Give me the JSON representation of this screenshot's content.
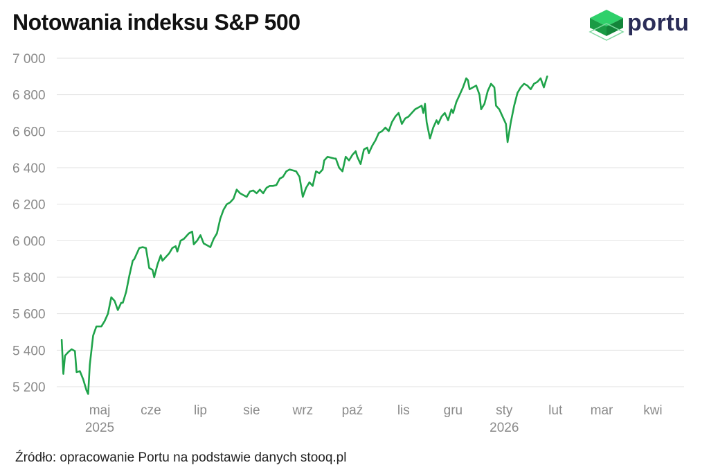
{
  "title": "Notowania indeksu S&P 500",
  "logo": {
    "text": "portu",
    "icon": "cube-icon",
    "color": "#1faa4a"
  },
  "source": "Źródło: opracowanie Portu na podstawie danych stooq.pl",
  "chart_data": {
    "type": "line",
    "title": "Notowania indeksu S&P 500",
    "xlabel": "",
    "ylabel": "",
    "ylim": [
      5150,
      7000
    ],
    "yticks": [
      5200,
      5400,
      5600,
      5800,
      6000,
      6200,
      6400,
      6600,
      6800,
      7000
    ],
    "ytick_labels": [
      "5 200",
      "5 400",
      "5 600",
      "5 800",
      "6 000",
      "6 200",
      "6 400",
      "6 600",
      "6 800",
      "7 000"
    ],
    "x_tick_labels": [
      {
        "label": "maj",
        "year": "2025",
        "date": "2025-05-01"
      },
      {
        "label": "cze",
        "year": "",
        "date": "2025-06-01"
      },
      {
        "label": "lip",
        "year": "",
        "date": "2025-07-01"
      },
      {
        "label": "sie",
        "year": "",
        "date": "2025-08-01"
      },
      {
        "label": "wrz",
        "year": "",
        "date": "2025-09-01"
      },
      {
        "label": "paź",
        "year": "",
        "date": "2025-10-01"
      },
      {
        "label": "lis",
        "year": "",
        "date": "2025-11-01"
      },
      {
        "label": "gru",
        "year": "",
        "date": "2025-12-01"
      },
      {
        "label": "sty",
        "year": "2026",
        "date": "2026-01-01"
      },
      {
        "label": "lut",
        "year": "",
        "date": "2026-02-01"
      },
      {
        "label": "mar",
        "year": "",
        "date": "2026-03-01"
      },
      {
        "label": "kwi",
        "year": "",
        "date": "2026-04-01"
      }
    ],
    "grid": true,
    "line_color": "#1fa34a",
    "series": [
      {
        "name": "",
        "points": [
          [
            "2025-04-08",
            5457
          ],
          [
            "2025-04-09",
            5270
          ],
          [
            "2025-04-10",
            5370
          ],
          [
            "2025-04-12",
            5390
          ],
          [
            "2025-04-14",
            5405
          ],
          [
            "2025-04-16",
            5395
          ],
          [
            "2025-04-17",
            5280
          ],
          [
            "2025-04-19",
            5285
          ],
          [
            "2025-04-21",
            5240
          ],
          [
            "2025-04-23",
            5180
          ],
          [
            "2025-04-24",
            5160
          ],
          [
            "2025-04-25",
            5320
          ],
          [
            "2025-04-27",
            5480
          ],
          [
            "2025-04-29",
            5530
          ],
          [
            "2025-05-02",
            5530
          ],
          [
            "2025-05-04",
            5560
          ],
          [
            "2025-05-06",
            5600
          ],
          [
            "2025-05-08",
            5690
          ],
          [
            "2025-05-10",
            5670
          ],
          [
            "2025-05-12",
            5620
          ],
          [
            "2025-05-14",
            5660
          ],
          [
            "2025-05-15",
            5660
          ],
          [
            "2025-05-17",
            5720
          ],
          [
            "2025-05-19",
            5810
          ],
          [
            "2025-05-21",
            5890
          ],
          [
            "2025-05-22",
            5900
          ],
          [
            "2025-05-25",
            5960
          ],
          [
            "2025-05-27",
            5965
          ],
          [
            "2025-05-29",
            5960
          ],
          [
            "2025-05-31",
            5850
          ],
          [
            "2025-06-02",
            5840
          ],
          [
            "2025-06-03",
            5800
          ],
          [
            "2025-06-05",
            5870
          ],
          [
            "2025-06-07",
            5920
          ],
          [
            "2025-06-08",
            5890
          ],
          [
            "2025-06-10",
            5910
          ],
          [
            "2025-06-12",
            5930
          ],
          [
            "2025-06-14",
            5960
          ],
          [
            "2025-06-16",
            5970
          ],
          [
            "2025-06-17",
            5940
          ],
          [
            "2025-06-19",
            6000
          ],
          [
            "2025-06-21",
            6010
          ],
          [
            "2025-06-23",
            6030
          ],
          [
            "2025-06-24",
            6040
          ],
          [
            "2025-06-26",
            6050
          ],
          [
            "2025-06-27",
            5980
          ],
          [
            "2025-06-29",
            6000
          ],
          [
            "2025-07-01",
            6030
          ],
          [
            "2025-07-03",
            5985
          ],
          [
            "2025-07-05",
            5975
          ],
          [
            "2025-07-07",
            5965
          ],
          [
            "2025-07-09",
            6010
          ],
          [
            "2025-07-11",
            6040
          ],
          [
            "2025-07-13",
            6120
          ],
          [
            "2025-07-15",
            6170
          ],
          [
            "2025-07-17",
            6200
          ],
          [
            "2025-07-19",
            6210
          ],
          [
            "2025-07-21",
            6230
          ],
          [
            "2025-07-23",
            6280
          ],
          [
            "2025-07-25",
            6260
          ],
          [
            "2025-07-27",
            6250
          ],
          [
            "2025-07-29",
            6240
          ],
          [
            "2025-07-31",
            6270
          ],
          [
            "2025-08-02",
            6275
          ],
          [
            "2025-08-04",
            6260
          ],
          [
            "2025-08-06",
            6280
          ],
          [
            "2025-08-08",
            6260
          ],
          [
            "2025-08-10",
            6290
          ],
          [
            "2025-08-12",
            6300
          ],
          [
            "2025-08-14",
            6300
          ],
          [
            "2025-08-16",
            6305
          ],
          [
            "2025-08-18",
            6340
          ],
          [
            "2025-08-20",
            6350
          ],
          [
            "2025-08-22",
            6380
          ],
          [
            "2025-08-24",
            6390
          ],
          [
            "2025-08-26",
            6385
          ],
          [
            "2025-08-28",
            6380
          ],
          [
            "2025-08-30",
            6350
          ],
          [
            "2025-09-01",
            6240
          ],
          [
            "2025-09-03",
            6290
          ],
          [
            "2025-09-05",
            6320
          ],
          [
            "2025-09-07",
            6300
          ],
          [
            "2025-09-09",
            6380
          ],
          [
            "2025-09-11",
            6370
          ],
          [
            "2025-09-13",
            6390
          ],
          [
            "2025-09-14",
            6440
          ],
          [
            "2025-09-16",
            6460
          ],
          [
            "2025-09-18",
            6455
          ],
          [
            "2025-09-20",
            6450
          ],
          [
            "2025-09-21",
            6450
          ],
          [
            "2025-09-23",
            6400
          ],
          [
            "2025-09-25",
            6380
          ],
          [
            "2025-09-27",
            6460
          ],
          [
            "2025-09-29",
            6440
          ],
          [
            "2025-10-01",
            6470
          ],
          [
            "2025-10-03",
            6490
          ],
          [
            "2025-10-04",
            6460
          ],
          [
            "2025-10-06",
            6420
          ],
          [
            "2025-10-08",
            6500
          ],
          [
            "2025-10-10",
            6510
          ],
          [
            "2025-10-11",
            6480
          ],
          [
            "2025-10-13",
            6520
          ],
          [
            "2025-10-15",
            6550
          ],
          [
            "2025-10-17",
            6590
          ],
          [
            "2025-10-19",
            6600
          ],
          [
            "2025-10-21",
            6620
          ],
          [
            "2025-10-23",
            6600
          ],
          [
            "2025-10-25",
            6650
          ],
          [
            "2025-10-27",
            6680
          ],
          [
            "2025-10-29",
            6700
          ],
          [
            "2025-10-31",
            6640
          ],
          [
            "2025-11-02",
            6670
          ],
          [
            "2025-11-04",
            6680
          ],
          [
            "2025-11-06",
            6700
          ],
          [
            "2025-11-08",
            6720
          ],
          [
            "2025-11-10",
            6730
          ],
          [
            "2025-11-12",
            6740
          ],
          [
            "2025-11-13",
            6700
          ],
          [
            "2025-11-14",
            6750
          ],
          [
            "2025-11-15",
            6650
          ],
          [
            "2025-11-17",
            6560
          ],
          [
            "2025-11-19",
            6620
          ],
          [
            "2025-11-21",
            6660
          ],
          [
            "2025-11-22",
            6640
          ],
          [
            "2025-11-24",
            6680
          ],
          [
            "2025-11-26",
            6700
          ],
          [
            "2025-11-28",
            6660
          ],
          [
            "2025-11-30",
            6720
          ],
          [
            "2025-12-01",
            6700
          ],
          [
            "2025-12-03",
            6760
          ],
          [
            "2025-12-05",
            6800
          ],
          [
            "2025-12-07",
            6840
          ],
          [
            "2025-12-09",
            6890
          ],
          [
            "2025-12-10",
            6880
          ],
          [
            "2025-12-11",
            6830
          ],
          [
            "2025-12-13",
            6840
          ],
          [
            "2025-12-15",
            6850
          ],
          [
            "2025-12-17",
            6800
          ],
          [
            "2025-12-18",
            6720
          ],
          [
            "2025-12-20",
            6750
          ],
          [
            "2025-12-22",
            6820
          ],
          [
            "2025-12-24",
            6860
          ],
          [
            "2025-12-26",
            6840
          ],
          [
            "2025-12-27",
            6740
          ],
          [
            "2025-12-29",
            6720
          ],
          [
            "2025-12-31",
            6680
          ],
          [
            "2026-01-02",
            6640
          ],
          [
            "2026-01-03",
            6540
          ],
          [
            "2026-01-05",
            6650
          ],
          [
            "2026-01-07",
            6740
          ],
          [
            "2026-01-09",
            6810
          ],
          [
            "2026-01-11",
            6840
          ],
          [
            "2026-01-13",
            6860
          ],
          [
            "2026-01-15",
            6850
          ],
          [
            "2026-01-17",
            6830
          ],
          [
            "2026-01-19",
            6860
          ],
          [
            "2026-01-21",
            6870
          ],
          [
            "2026-01-23",
            6890
          ],
          [
            "2026-01-25",
            6840
          ],
          [
            "2026-01-27",
            6900
          ]
        ]
      }
    ]
  }
}
